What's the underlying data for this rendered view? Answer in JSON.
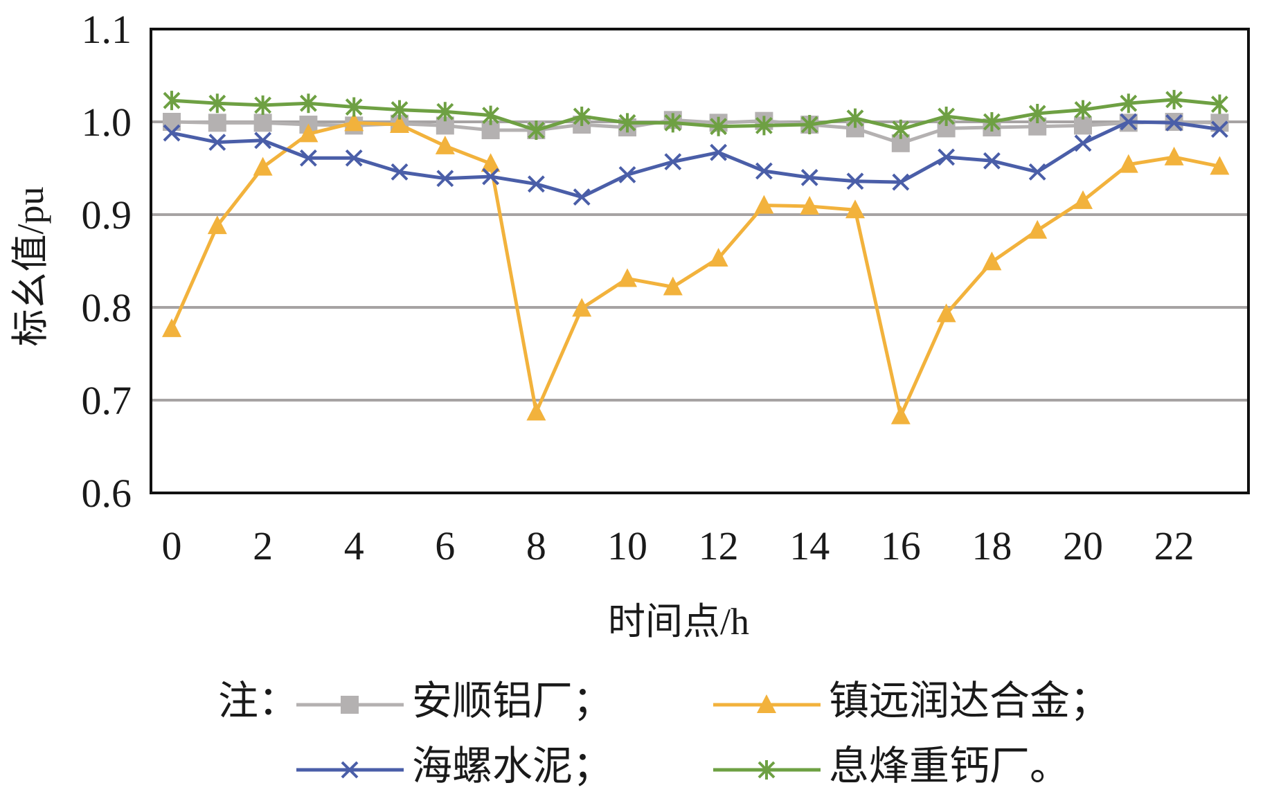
{
  "chart_data": {
    "type": "line",
    "xlabel": "时间点/h",
    "ylabel": "标幺值/pu",
    "ylim": [
      0.6,
      1.1
    ],
    "xlim": [
      0,
      23
    ],
    "yticks": [
      "0.6",
      "0.7",
      "0.8",
      "0.9",
      "1.0",
      "1.1"
    ],
    "xticks": [
      "0",
      "2",
      "4",
      "6",
      "8",
      "10",
      "12",
      "14",
      "16",
      "18",
      "20",
      "22"
    ],
    "grid": "horizontal",
    "legend_prefix": "注：",
    "legend_placement": "bottom",
    "x": [
      0,
      1,
      2,
      3,
      4,
      5,
      6,
      7,
      8,
      9,
      10,
      11,
      12,
      13,
      14,
      15,
      16,
      17,
      18,
      19,
      20,
      21,
      22,
      23
    ],
    "series": [
      {
        "name": "安顺铝厂；",
        "color": "#b4b1b1",
        "marker": "square",
        "values": [
          1.0,
          0.999,
          0.999,
          0.997,
          0.996,
          0.998,
          0.996,
          0.991,
          0.991,
          0.997,
          0.994,
          1.002,
          0.999,
          1.001,
          0.997,
          0.993,
          0.977,
          0.993,
          0.994,
          0.995,
          0.996,
          0.999,
          1.0,
          0.999
        ]
      },
      {
        "name": "镇远润达合金；",
        "color": "#f2b23c",
        "marker": "triangle",
        "values": [
          0.777,
          0.888,
          0.951,
          0.987,
          0.999,
          0.997,
          0.974,
          0.955,
          0.687,
          0.799,
          0.831,
          0.822,
          0.853,
          0.91,
          0.909,
          0.905,
          0.683,
          0.793,
          0.849,
          0.883,
          0.915,
          0.954,
          0.962,
          0.952
        ]
      },
      {
        "name": "海螺水泥；",
        "color": "#4a5ea8",
        "marker": "x",
        "values": [
          0.988,
          0.978,
          0.98,
          0.961,
          0.961,
          0.946,
          0.939,
          0.941,
          0.933,
          0.919,
          0.943,
          0.957,
          0.967,
          0.947,
          0.94,
          0.936,
          0.935,
          0.962,
          0.958,
          0.946,
          0.977,
          1.0,
          0.999,
          0.992
        ]
      },
      {
        "name": "息烽重钙厂。",
        "color": "#6ea043",
        "marker": "star",
        "values": [
          1.023,
          1.02,
          1.018,
          1.02,
          1.016,
          1.013,
          1.011,
          1.007,
          0.991,
          1.006,
          0.999,
          0.999,
          0.995,
          0.996,
          0.997,
          1.004,
          0.992,
          1.006,
          1.0,
          1.009,
          1.013,
          1.02,
          1.024,
          1.019
        ]
      }
    ]
  }
}
